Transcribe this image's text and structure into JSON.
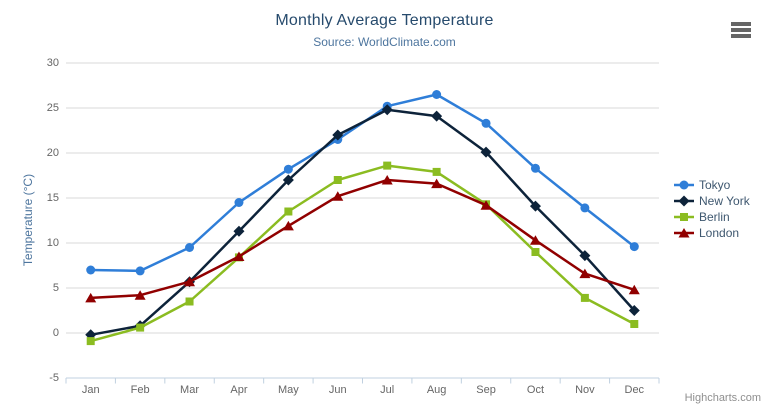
{
  "chart_data": {
    "type": "line",
    "title": "Monthly Average Temperature",
    "subtitle": "Source: WorldClimate.com",
    "xlabel": "",
    "ylabel": "Temperature (°C)",
    "categories": [
      "Jan",
      "Feb",
      "Mar",
      "Apr",
      "May",
      "Jun",
      "Jul",
      "Aug",
      "Sep",
      "Oct",
      "Nov",
      "Dec"
    ],
    "series": [
      {
        "name": "Tokyo",
        "color": "#2f7ed8",
        "marker": "circle",
        "values": [
          7.0,
          6.9,
          9.5,
          14.5,
          18.2,
          21.5,
          25.2,
          26.5,
          23.3,
          18.3,
          13.9,
          9.6
        ]
      },
      {
        "name": "New York",
        "color": "#0d233a",
        "marker": "diamond",
        "values": [
          -0.2,
          0.8,
          5.7,
          11.3,
          17.0,
          22.0,
          24.8,
          24.1,
          20.1,
          14.1,
          8.6,
          2.5
        ]
      },
      {
        "name": "Berlin",
        "color": "#8bbc21",
        "marker": "square",
        "values": [
          -0.9,
          0.6,
          3.5,
          8.4,
          13.5,
          17.0,
          18.6,
          17.9,
          14.3,
          9.0,
          3.9,
          1.0
        ]
      },
      {
        "name": "London",
        "color": "#910000",
        "marker": "triangle",
        "values": [
          3.9,
          4.2,
          5.7,
          8.5,
          11.9,
          15.2,
          17.0,
          16.6,
          14.2,
          10.3,
          6.6,
          4.8
        ]
      }
    ],
    "ylim": [
      -5,
      30
    ],
    "y_ticks": [
      -5,
      0,
      5,
      10,
      15,
      20,
      25,
      30
    ],
    "grid": true,
    "legend_position": "right",
    "gridline_color": "#d8d8d8",
    "axis_line_color": "#c0d0e0"
  },
  "credits": {
    "text": "Highcharts.com"
  },
  "icons": {
    "context_menu": "hamburger-icon"
  }
}
